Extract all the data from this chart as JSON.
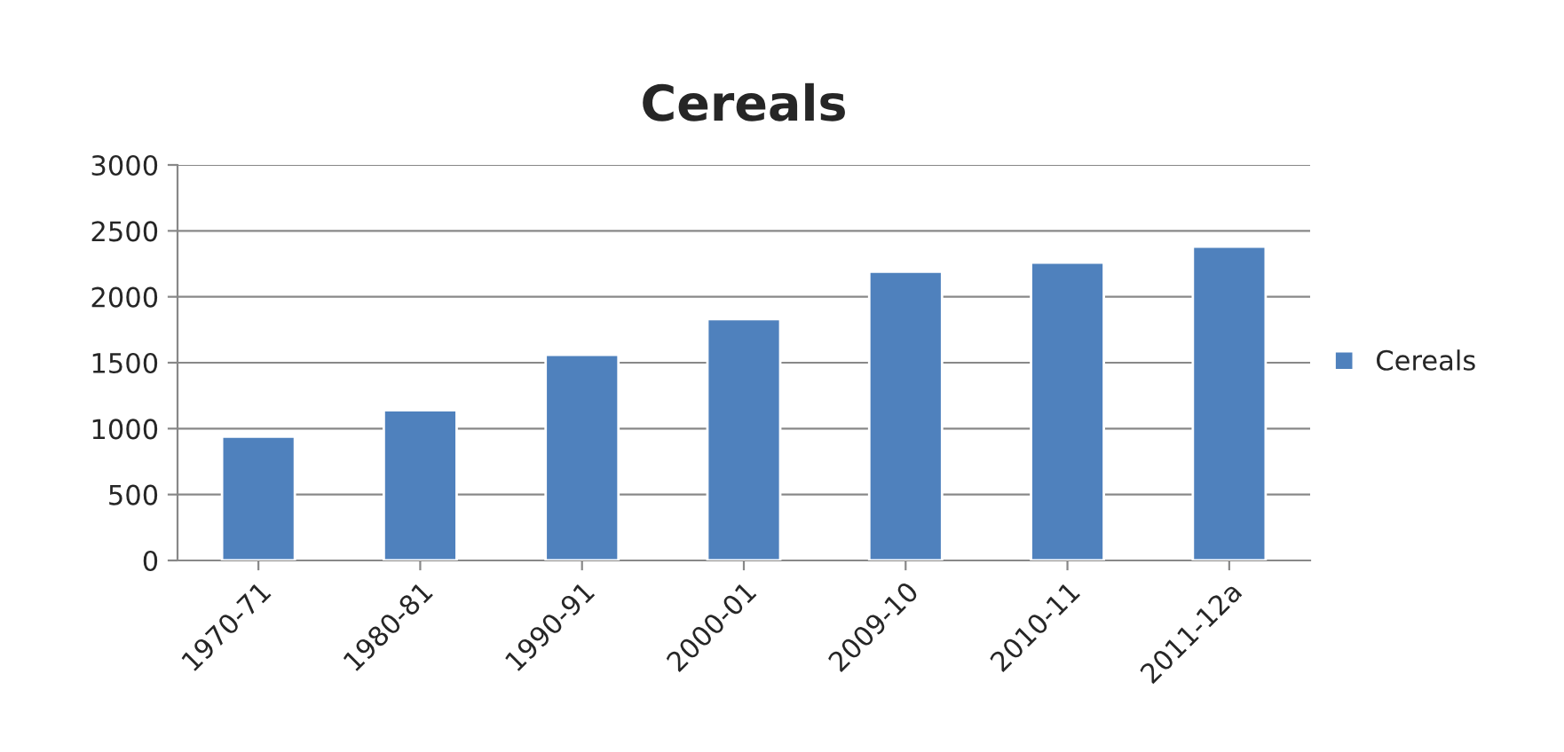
{
  "chart_data": {
    "type": "bar",
    "title": "Cereals",
    "categories": [
      "1970-71",
      "1980-81",
      "1990-91",
      "2000-01",
      "2009-10",
      "2010-11",
      "2011-12a"
    ],
    "series": [
      {
        "name": "Cereals",
        "color": "#4f81bd",
        "values": [
          940,
          1140,
          1560,
          1830,
          2190,
          2260,
          2380
        ]
      }
    ],
    "ylim": [
      0,
      3000
    ],
    "yticks": [
      0,
      500,
      1000,
      1500,
      2000,
      2500,
      3000
    ],
    "grid": "y",
    "legend": "right"
  }
}
